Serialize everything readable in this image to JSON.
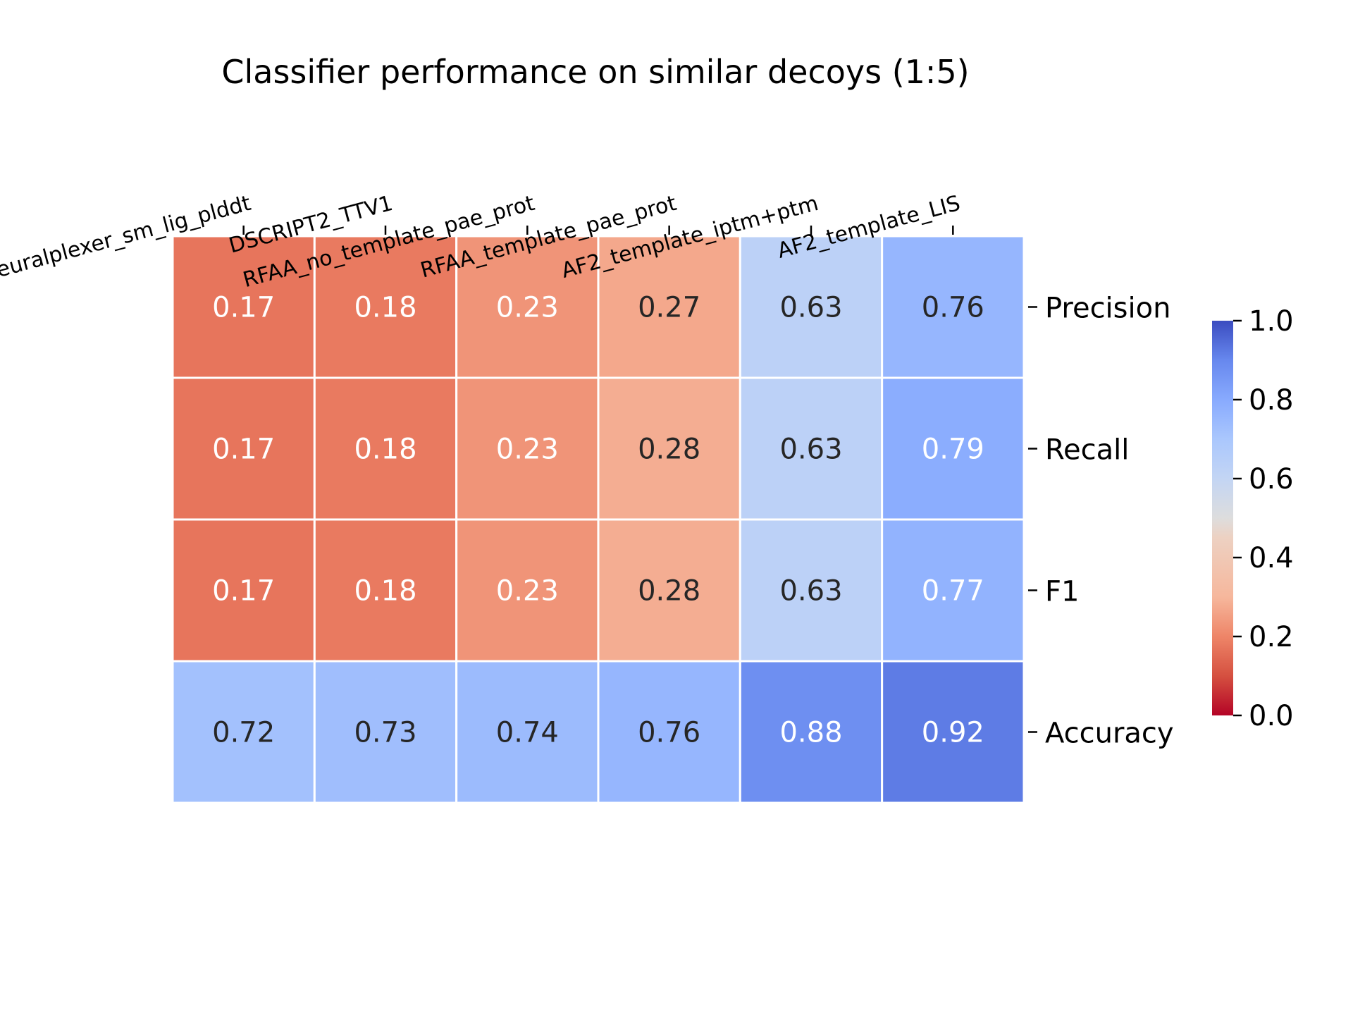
{
  "chart_data": {
    "type": "heatmap",
    "title": "Classifier performance on similar decoys (1:5)",
    "columns": [
      "Neuralplexer_sm_lig_plddt",
      "DSCRIPT2_TTV1",
      "RFAA_no_template_pae_prot",
      "RFAA_template_pae_prot",
      "AF2_template_iptm+ptm",
      "AF2_template_LIS"
    ],
    "rows": [
      "Precision",
      "Recall",
      "F1",
      "Accuracy"
    ],
    "values": [
      [
        0.17,
        0.18,
        0.23,
        0.27,
        0.63,
        0.76
      ],
      [
        0.17,
        0.18,
        0.23,
        0.28,
        0.63,
        0.79
      ],
      [
        0.17,
        0.18,
        0.23,
        0.28,
        0.63,
        0.77
      ],
      [
        0.72,
        0.73,
        0.74,
        0.76,
        0.88,
        0.92
      ]
    ],
    "x_ticks_position": "top",
    "y_ticks_position": "right",
    "colormap": "coolwarm_r",
    "colorbar": {
      "min": 0.0,
      "max": 1.0,
      "ticks": [
        "0.0",
        "0.2",
        "0.4",
        "0.6",
        "0.8",
        "1.0"
      ]
    },
    "grid": false
  }
}
